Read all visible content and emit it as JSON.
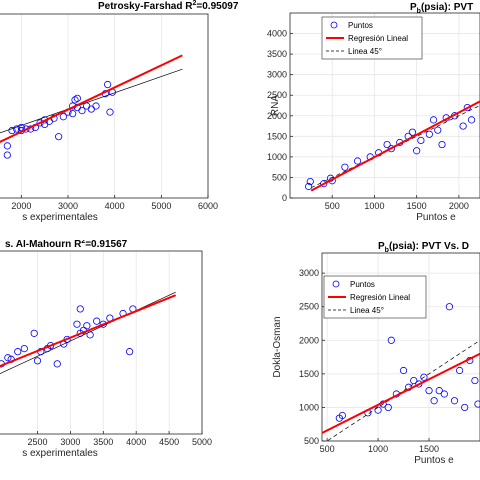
{
  "legend_labels": {
    "points": "Puntos",
    "fit": "Regresión Lineal",
    "ref": "Linea 45°"
  },
  "colors": {
    "points": "#0000ff",
    "fit": "#ff0000",
    "ref": "#000000",
    "axis": "#262626"
  },
  "chart_data": [
    {
      "id": "tl",
      "type": "scatter",
      "title": "Petrosky-Farshad R",
      "title_sup": "2",
      "title_tail": "=0.95097",
      "title_sub": "",
      "xlabel": "s experimentales",
      "ylabel": "",
      "xlim": [
        1500,
        6000
      ],
      "ylim": [
        0,
        6000
      ],
      "xticks": [
        2000,
        3000,
        4000,
        5000,
        6000
      ],
      "yticks": [],
      "grid": true,
      "legend": false,
      "points": [
        [
          1700,
          1400
        ],
        [
          1700,
          1700
        ],
        [
          1800,
          2200
        ],
        [
          1900,
          2250
        ],
        [
          2000,
          2300
        ],
        [
          2000,
          2200
        ],
        [
          2100,
          2250
        ],
        [
          2200,
          2250
        ],
        [
          2300,
          2300
        ],
        [
          2400,
          2450
        ],
        [
          2500,
          2400
        ],
        [
          2500,
          2550
        ],
        [
          2600,
          2500
        ],
        [
          2700,
          2600
        ],
        [
          2800,
          2000
        ],
        [
          2900,
          2650
        ],
        [
          3000,
          2800
        ],
        [
          3100,
          2750
        ],
        [
          3100,
          3000
        ],
        [
          3150,
          3200
        ],
        [
          3200,
          2950
        ],
        [
          3200,
          3250
        ],
        [
          3300,
          2850
        ],
        [
          3400,
          3000
        ],
        [
          3500,
          2900
        ],
        [
          3600,
          3000
        ],
        [
          3800,
          3400
        ],
        [
          3850,
          3700
        ],
        [
          3900,
          2800
        ],
        [
          3950,
          3450
        ]
      ],
      "fit_line": [
        [
          1500,
          1800
        ],
        [
          5450,
          4650
        ]
      ],
      "ref_line": [
        [
          1500,
          2100
        ],
        [
          5450,
          4200
        ]
      ]
    },
    {
      "id": "tr",
      "type": "scatter",
      "title": "P",
      "title_sup": "",
      "title_sub": "b",
      "title_tail": "(psia): PVT",
      "xlabel": "Puntos e",
      "ylabel": "RNA",
      "xlim": [
        0,
        2250
      ],
      "ylim": [
        0,
        4500
      ],
      "xticks": [
        500,
        1000,
        1500,
        2000
      ],
      "yticks": [
        0,
        500,
        1000,
        1500,
        2000,
        2500,
        3000,
        3500,
        4000
      ],
      "grid": true,
      "legend": true,
      "points": [
        [
          220,
          280
        ],
        [
          240,
          400
        ],
        [
          400,
          350
        ],
        [
          480,
          480
        ],
        [
          500,
          420
        ],
        [
          650,
          750
        ],
        [
          800,
          900
        ],
        [
          950,
          1000
        ],
        [
          1050,
          1100
        ],
        [
          1150,
          1300
        ],
        [
          1200,
          1200
        ],
        [
          1300,
          1350
        ],
        [
          1400,
          1500
        ],
        [
          1450,
          1600
        ],
        [
          1500,
          1150
        ],
        [
          1550,
          1400
        ],
        [
          1650,
          1550
        ],
        [
          1700,
          1900
        ],
        [
          1750,
          1650
        ],
        [
          1800,
          1300
        ],
        [
          1850,
          1950
        ],
        [
          1950,
          2000
        ],
        [
          2050,
          1750
        ],
        [
          2100,
          2200
        ],
        [
          2150,
          1900
        ]
      ],
      "fit_line": [
        [
          250,
          180
        ],
        [
          2250,
          2350
        ]
      ],
      "ref_line": [
        [
          250,
          250
        ],
        [
          2250,
          2250
        ]
      ]
    },
    {
      "id": "bl",
      "type": "scatter",
      "title": "s. Al-Mahourn R",
      "title_sup": "2",
      "title_tail": "=0.91567",
      "title_sub": "",
      "xlabel": "s experimentales",
      "ylabel": "",
      "xlim": [
        1900,
        5000
      ],
      "ylim": [
        0,
        6000
      ],
      "xticks": [
        2500,
        3000,
        3500,
        4000,
        4500,
        5000
      ],
      "yticks": [],
      "grid": true,
      "legend": false,
      "points": [
        [
          1950,
          2300
        ],
        [
          2050,
          2500
        ],
        [
          2100,
          2450
        ],
        [
          2200,
          2700
        ],
        [
          2300,
          2800
        ],
        [
          2450,
          3300
        ],
        [
          2500,
          2400
        ],
        [
          2550,
          2700
        ],
        [
          2650,
          2800
        ],
        [
          2700,
          2900
        ],
        [
          2800,
          2300
        ],
        [
          2900,
          2950
        ],
        [
          2950,
          3100
        ],
        [
          3100,
          3600
        ],
        [
          3150,
          3300
        ],
        [
          3150,
          4100
        ],
        [
          3200,
          3400
        ],
        [
          3250,
          3550
        ],
        [
          3300,
          3250
        ],
        [
          3400,
          3700
        ],
        [
          3500,
          3600
        ],
        [
          3600,
          3800
        ],
        [
          3800,
          3950
        ],
        [
          3900,
          2700
        ],
        [
          3950,
          4100
        ]
      ],
      "fit_line": [
        [
          1900,
          2200
        ],
        [
          4600,
          4550
        ]
      ],
      "ref_line": [
        [
          1900,
          1950
        ],
        [
          4600,
          4650
        ]
      ]
    },
    {
      "id": "br",
      "type": "scatter",
      "title": "P",
      "title_sup": "",
      "title_sub": "b",
      "title_tail": "(psia): PVT Vs. D",
      "xlabel": "Puntos e",
      "ylabel": "Dokla-Osman",
      "xlim": [
        450,
        2000
      ],
      "ylim": [
        500,
        3300
      ],
      "xticks": [
        500,
        1000,
        1500
      ],
      "yticks": [
        500,
        1000,
        1500,
        2000,
        2500,
        3000
      ],
      "grid": true,
      "legend": true,
      "points": [
        [
          620,
          840
        ],
        [
          650,
          880
        ],
        [
          900,
          920
        ],
        [
          1000,
          960
        ],
        [
          1050,
          1050
        ],
        [
          1100,
          1000
        ],
        [
          1130,
          2000
        ],
        [
          1180,
          1200
        ],
        [
          1250,
          1550
        ],
        [
          1300,
          1300
        ],
        [
          1350,
          1400
        ],
        [
          1400,
          1350
        ],
        [
          1450,
          1450
        ],
        [
          1500,
          1250
        ],
        [
          1550,
          1100
        ],
        [
          1600,
          1250
        ],
        [
          1650,
          1200
        ],
        [
          1700,
          2500
        ],
        [
          1750,
          1100
        ],
        [
          1800,
          1550
        ],
        [
          1850,
          1000
        ],
        [
          1900,
          1700
        ],
        [
          1950,
          1400
        ],
        [
          1980,
          1050
        ]
      ],
      "fit_line": [
        [
          450,
          620
        ],
        [
          2000,
          1800
        ]
      ],
      "ref_line": [
        [
          450,
          450
        ],
        [
          2000,
          2000
        ]
      ]
    }
  ]
}
